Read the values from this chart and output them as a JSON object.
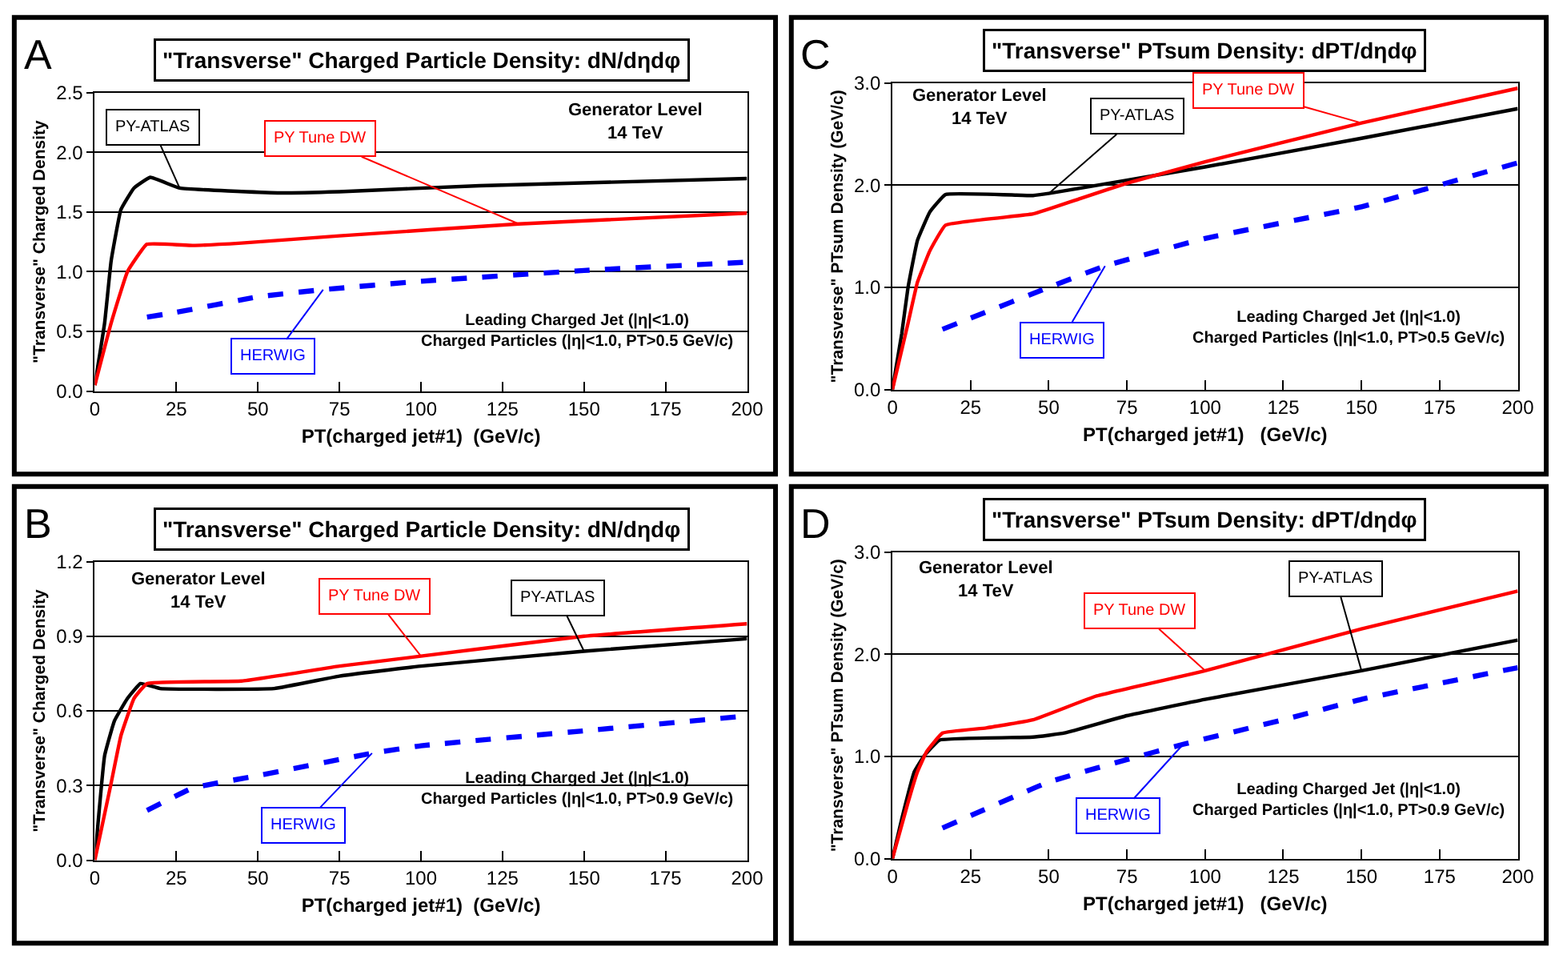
{
  "chart_data": [
    {
      "type": "line",
      "title": "\"Transverse\" Charged Particle Density: dN/dηdφ",
      "xlabel": "PT(charged jet#1)  (GeV/c)",
      "ylabel": "\"Transverse\" Charged Density",
      "xlim": [
        0,
        200
      ],
      "xticks": [
        0,
        25,
        50,
        75,
        100,
        125,
        150,
        175,
        200
      ],
      "ylim": [
        0,
        2.5
      ],
      "yticks": [
        {
          "value": 0,
          "label": "0.0"
        },
        {
          "value": 0.5,
          "label": "0.5"
        },
        {
          "value": 1,
          "label": "1.0"
        },
        {
          "value": 1.5,
          "label": "1.5"
        },
        {
          "value": 2,
          "label": "2.0"
        },
        {
          "value": 2.5,
          "label": "2.5"
        }
      ],
      "grid": "y",
      "legend": false,
      "marker": "none",
      "annotations": [
        "A",
        "Generator Level\n14 TeV",
        "Leading Charged Jet (|η|<1.0)\nCharged Particles (|η|<1.0, PT>0.5 GeV/c)"
      ],
      "series": [
        {
          "name": "PY-ATLAS",
          "color": "#000000",
          "line_style": "solid",
          "x": [
            0,
            3,
            5,
            8,
            12,
            17,
            26,
            56,
            75,
            118,
            200
          ],
          "values": [
            0.05,
            0.57,
            1.09,
            1.52,
            1.7,
            1.79,
            1.7,
            1.66,
            1.67,
            1.72,
            1.78
          ]
        },
        {
          "name": "PY Tune DW",
          "color": "#ff0000",
          "line_style": "solid",
          "x": [
            0,
            5,
            10,
            16,
            30,
            45,
            75,
            130,
            200
          ],
          "values": [
            0.05,
            0.57,
            1.0,
            1.23,
            1.22,
            1.24,
            1.3,
            1.4,
            1.49
          ]
        },
        {
          "name": "HERWIG",
          "color": "#0000ff",
          "line_style": "dashed",
          "x": [
            16,
            25,
            50,
            70,
            100,
            150,
            200
          ],
          "values": [
            0.62,
            0.66,
            0.79,
            0.85,
            0.92,
            1.01,
            1.08
          ]
        }
      ]
    },
    {
      "type": "line",
      "title": "\"Transverse\" PTsum Density: dPT/dηdφ",
      "xlabel": "PT(charged jet#1)   (GeV/c)",
      "ylabel": "\"Transverse\" PTsum Density (GeV/c)",
      "xlim": [
        0,
        200
      ],
      "xticks": [
        0,
        25,
        50,
        75,
        100,
        125,
        150,
        175,
        200
      ],
      "ylim": [
        0,
        3
      ],
      "yticks": [
        {
          "value": 0,
          "label": "0.0"
        },
        {
          "value": 1,
          "label": "1.0"
        },
        {
          "value": 2,
          "label": "2.0"
        },
        {
          "value": 3,
          "label": "3.0"
        }
      ],
      "grid": "y",
      "legend": false,
      "marker": "none",
      "annotations": [
        "C",
        "Generator Level\n14 TeV",
        "Leading Charged Jet (|η|<1.0)\nCharged Particles (|η|<1.0, PT>0.5 GeV/c)"
      ],
      "series": [
        {
          "name": "PY-ATLAS",
          "color": "#000000",
          "line_style": "solid",
          "x": [
            0,
            3,
            5,
            8,
            12,
            17,
            45,
            50,
            75,
            100,
            150,
            200
          ],
          "values": [
            0,
            0.55,
            1.0,
            1.46,
            1.74,
            1.91,
            1.9,
            1.92,
            2.05,
            2.18,
            2.46,
            2.75
          ]
        },
        {
          "name": "PY Tune DW",
          "color": "#ff0000",
          "line_style": "solid",
          "x": [
            0,
            5,
            8,
            12,
            17,
            45,
            60,
            75,
            100,
            150,
            200
          ],
          "values": [
            0,
            0.65,
            1.05,
            1.36,
            1.61,
            1.72,
            1.87,
            2.02,
            2.23,
            2.61,
            2.95
          ]
        },
        {
          "name": "HERWIG",
          "color": "#0000ff",
          "line_style": "dashed",
          "x": [
            16,
            25,
            50,
            68,
            100,
            150,
            200
          ],
          "values": [
            0.59,
            0.7,
            1.0,
            1.21,
            1.48,
            1.79,
            2.22
          ]
        }
      ]
    },
    {
      "type": "line",
      "title": "\"Transverse\" Charged Particle Density: dN/dηdφ",
      "xlabel": "PT(charged jet#1)  (GeV/c)",
      "ylabel": "\"Transverse\" Charged Density",
      "xlim": [
        0,
        200
      ],
      "xticks": [
        0,
        25,
        50,
        75,
        100,
        125,
        150,
        175,
        200
      ],
      "ylim": [
        0,
        1.2
      ],
      "yticks": [
        {
          "value": 0,
          "label": "0.0"
        },
        {
          "value": 0.3,
          "label": "0.3"
        },
        {
          "value": 0.6,
          "label": "0.6"
        },
        {
          "value": 0.9,
          "label": "0.9"
        },
        {
          "value": 1.2,
          "label": "1.2"
        }
      ],
      "grid": "y",
      "legend": false,
      "marker": "none",
      "annotations": [
        "B",
        "Generator Level\n14 TeV",
        "Leading Charged Jet (|η|<1.0)\nCharged Particles (|η|<1.0, PT>0.9 GeV/c)"
      ],
      "series": [
        {
          "name": "PY-ATLAS",
          "color": "#000000",
          "line_style": "solid",
          "x": [
            0,
            3,
            6,
            10,
            14,
            20,
            55,
            75,
            100,
            150,
            200
          ],
          "values": [
            0,
            0.42,
            0.56,
            0.65,
            0.71,
            0.69,
            0.69,
            0.74,
            0.78,
            0.84,
            0.89
          ]
        },
        {
          "name": "PY Tune DW",
          "color": "#ff0000",
          "line_style": "solid",
          "x": [
            0,
            5,
            8,
            12,
            16,
            45,
            75,
            100,
            150,
            200
          ],
          "values": [
            0,
            0.31,
            0.5,
            0.65,
            0.71,
            0.72,
            0.78,
            0.82,
            0.9,
            0.95
          ]
        },
        {
          "name": "HERWIG",
          "color": "#0000ff",
          "line_style": "dashed",
          "x": [
            16,
            30,
            50,
            85,
            100,
            150,
            200
          ],
          "values": [
            0.2,
            0.29,
            0.34,
            0.43,
            0.46,
            0.52,
            0.58
          ]
        }
      ]
    },
    {
      "type": "line",
      "title": "\"Transverse\" PTsum Density: dPT/dηdφ",
      "xlabel": "PT(charged jet#1)   (GeV/c)",
      "ylabel": "\"Transverse\" PTsum Density (GeV/c)",
      "xlim": [
        0,
        200
      ],
      "xticks": [
        0,
        25,
        50,
        75,
        100,
        125,
        150,
        175,
        200
      ],
      "ylim": [
        0,
        3
      ],
      "yticks": [
        {
          "value": 0,
          "label": "0.0"
        },
        {
          "value": 1,
          "label": "1.0"
        },
        {
          "value": 2,
          "label": "2.0"
        },
        {
          "value": 3,
          "label": "3.0"
        }
      ],
      "grid": "y",
      "legend": false,
      "marker": "none",
      "annotations": [
        "D",
        "Generator Level\n14 TeV",
        "Leading Charged Jet (|η|<1.0)\nCharged Particles (|η|<1.0, PT>0.9 GeV/c)"
      ],
      "series": [
        {
          "name": "PY-ATLAS",
          "color": "#000000",
          "line_style": "solid",
          "x": [
            0,
            3,
            7,
            10,
            15,
            45,
            55,
            75,
            100,
            150,
            200
          ],
          "values": [
            0,
            0.39,
            0.85,
            1.0,
            1.16,
            1.19,
            1.23,
            1.4,
            1.56,
            1.84,
            2.14
          ]
        },
        {
          "name": "PY Tune DW",
          "color": "#ff0000",
          "line_style": "solid",
          "x": [
            0,
            5,
            8,
            11,
            16,
            30,
            45,
            65,
            100,
            150,
            200
          ],
          "values": [
            0,
            0.55,
            0.85,
            1.05,
            1.23,
            1.28,
            1.36,
            1.59,
            1.84,
            2.25,
            2.62
          ]
        },
        {
          "name": "HERWIG",
          "color": "#0000ff",
          "line_style": "dashed",
          "x": [
            16,
            50,
            75,
            93,
            125,
            150,
            200
          ],
          "values": [
            0.3,
            0.75,
            0.97,
            1.12,
            1.36,
            1.56,
            1.87
          ]
        }
      ]
    }
  ]
}
